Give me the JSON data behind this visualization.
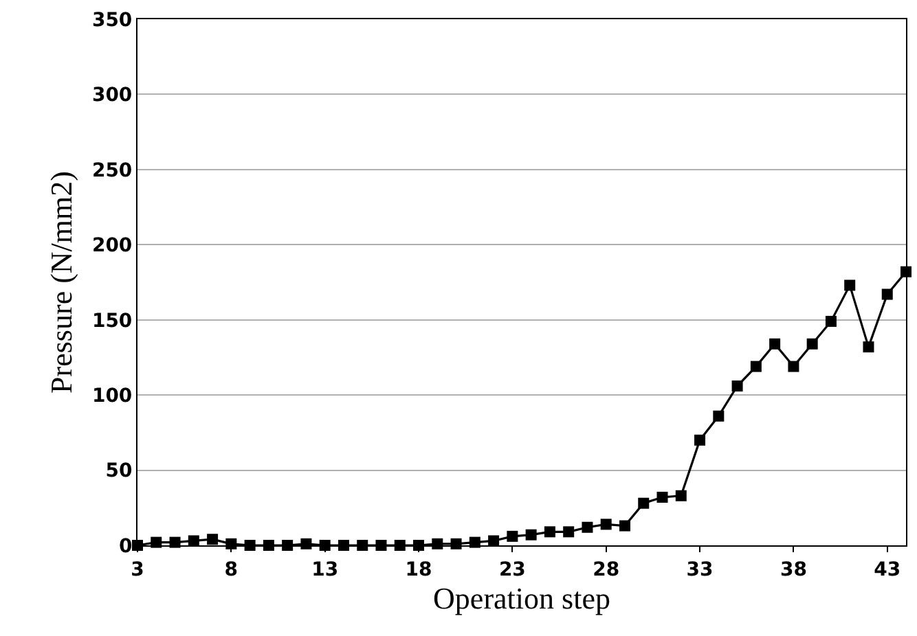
{
  "chart_data": {
    "type": "line",
    "xlabel": "Operation step",
    "ylabel": "Pressure (N/mm2)",
    "x": [
      3,
      4,
      5,
      6,
      7,
      8,
      9,
      10,
      11,
      12,
      13,
      14,
      15,
      16,
      17,
      18,
      19,
      20,
      21,
      22,
      23,
      24,
      25,
      26,
      27,
      28,
      29,
      30,
      31,
      32,
      33,
      34,
      35,
      36,
      37,
      38,
      39,
      40,
      41,
      42,
      43,
      44
    ],
    "series": [
      {
        "color": "#000000",
        "values": [
          0,
          2,
          2,
          3,
          4,
          1,
          0,
          0,
          0,
          1,
          0,
          0,
          0,
          0,
          0,
          0,
          1,
          1,
          2,
          3,
          6,
          7,
          9,
          9,
          12,
          14,
          13,
          28,
          32,
          33,
          70,
          86,
          106,
          119,
          134,
          119,
          134,
          149,
          173,
          132,
          167,
          182
        ]
      }
    ],
    "xlim": [
      3,
      44
    ],
    "xticks": [
      3,
      8,
      13,
      18,
      23,
      28,
      33,
      38,
      43
    ],
    "ylim": [
      0,
      350
    ],
    "yticks": [
      0,
      50,
      100,
      150,
      200,
      250,
      300,
      350
    ],
    "grid": "y",
    "legend": false,
    "marker": "square",
    "line_style": "solid"
  }
}
